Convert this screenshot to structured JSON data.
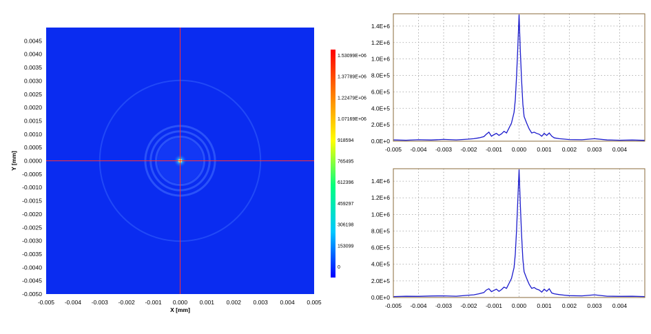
{
  "chart_data": [
    {
      "type": "heatmap",
      "title": "",
      "xlabel": "X [mm]",
      "ylabel": "Y [mm]",
      "xlim": [
        -0.005,
        0.005
      ],
      "ylim": [
        -0.005,
        0.005
      ],
      "x_ticks": [
        "-0.005",
        "-0.004",
        "-0.003",
        "-0.002",
        "-0.001",
        "0.000",
        "0.001",
        "0.002",
        "0.003",
        "0.004",
        "0.005"
      ],
      "y_ticks": [
        "0.0045",
        "0.0040",
        "0.0035",
        "0.0030",
        "0.0025",
        "0.0020",
        "0.0015",
        "0.0010",
        "0.0005",
        "0.0000",
        "-0.0005",
        "-0.0010",
        "-0.0015",
        "-0.0020",
        "-0.0025",
        "-0.0030",
        "-0.0035",
        "-0.0040",
        "-0.0045",
        "-0.0050"
      ],
      "y_tick_values": [
        0.0045,
        0.004,
        0.0035,
        0.003,
        0.0025,
        0.002,
        0.0015,
        0.001,
        0.0005,
        0.0,
        -0.0005,
        -0.001,
        -0.0015,
        -0.002,
        -0.0025,
        -0.003,
        -0.0035,
        -0.004,
        -0.0045,
        -0.005
      ],
      "crosshair": {
        "x": 0.0,
        "y": 0.0,
        "color": "#ff3030"
      },
      "peak": {
        "x": 0.0,
        "y": 0.0,
        "value": 1530990
      },
      "rings_mm": [
        0.0009,
        0.0011,
        0.0013,
        0.003
      ],
      "colorbar": {
        "min": 0,
        "max": 1530990,
        "labels": [
          "1.53099E+06",
          "1.37789E+06",
          "1.22479E+06",
          "1.07169E+06",
          "918594",
          "765495",
          "612396",
          "459297",
          "306198",
          "153099",
          "0"
        ],
        "label_values": [
          1530990,
          1377890,
          1224790,
          1071690,
          918594,
          765495,
          612396,
          459297,
          306198,
          153099,
          0
        ],
        "colors": [
          "#0000ff",
          "#00c8ff",
          "#00ff80",
          "#ffff00",
          "#ff8000",
          "#ff0000"
        ]
      },
      "background_color": "#0a2cf0"
    },
    {
      "type": "line",
      "xlim": [
        -0.005,
        0.005
      ],
      "ylim": [
        0,
        1550000
      ],
      "x_ticks": [
        "-0.005",
        "-0.004",
        "-0.003",
        "-0.002",
        "-0.001",
        "0.000",
        "0.001",
        "0.002",
        "0.003",
        "0.004"
      ],
      "y_ticks": [
        "0.0E+0",
        "2.0E+5",
        "4.0E+5",
        "6.0E+5",
        "8.0E+5",
        "1.0E+6",
        "1.2E+6",
        "1.4E+6"
      ],
      "y_tick_values": [
        0,
        200000,
        400000,
        600000,
        800000,
        1000000,
        1200000,
        1400000
      ],
      "grid": true,
      "color": "#1a1acc",
      "series": [
        {
          "x": [
            -0.005,
            -0.0045,
            -0.004,
            -0.0035,
            -0.003,
            -0.0025,
            -0.002,
            -0.0018,
            -0.0016,
            -0.0014,
            -0.0013,
            -0.0012,
            -0.0011,
            -0.001,
            -0.0009,
            -0.0008,
            -0.0007,
            -0.0006,
            -0.0005,
            -0.0004,
            -0.0003,
            -0.0002,
            -0.00015,
            -0.0001,
            -5e-05,
            0.0,
            5e-05,
            0.0001,
            0.00015,
            0.0002,
            0.0003,
            0.0004,
            0.0005,
            0.0006,
            0.0007,
            0.0008,
            0.0009,
            0.001,
            0.0011,
            0.0012,
            0.0013,
            0.0014,
            0.0016,
            0.0018,
            0.002,
            0.0025,
            0.003,
            0.0035,
            0.004,
            0.0045,
            0.005
          ],
          "y": [
            15000,
            12000,
            18000,
            14000,
            22000,
            16000,
            25000,
            30000,
            40000,
            55000,
            85000,
            110000,
            60000,
            80000,
            95000,
            70000,
            90000,
            120000,
            100000,
            160000,
            220000,
            350000,
            500000,
            800000,
            1150000,
            1540000,
            1100000,
            750000,
            450000,
            300000,
            220000,
            150000,
            100000,
            110000,
            95000,
            85000,
            60000,
            95000,
            70000,
            100000,
            60000,
            40000,
            30000,
            25000,
            20000,
            18000,
            30000,
            15000,
            12000,
            14000,
            10000
          ]
        }
      ]
    },
    {
      "type": "line",
      "xlim": [
        -0.005,
        0.005
      ],
      "ylim": [
        0,
        1550000
      ],
      "x_ticks": [
        "-0.005",
        "-0.004",
        "-0.003",
        "-0.002",
        "-0.001",
        "0.000",
        "0.001",
        "0.002",
        "0.003",
        "0.004"
      ],
      "y_ticks": [
        "0.0E+0",
        "2.0E+5",
        "4.0E+5",
        "6.0E+5",
        "8.0E+5",
        "1.0E+6",
        "1.2E+6",
        "1.4E+6"
      ],
      "y_tick_values": [
        0,
        200000,
        400000,
        600000,
        800000,
        1000000,
        1200000,
        1400000
      ],
      "grid": true,
      "color": "#1a1acc",
      "series": [
        {
          "x": [
            -0.005,
            -0.0045,
            -0.004,
            -0.0035,
            -0.003,
            -0.0025,
            -0.002,
            -0.0018,
            -0.0016,
            -0.0014,
            -0.0013,
            -0.0012,
            -0.0011,
            -0.001,
            -0.0009,
            -0.0008,
            -0.0007,
            -0.0006,
            -0.0005,
            -0.0004,
            -0.0003,
            -0.0002,
            -0.00015,
            -0.0001,
            -5e-05,
            0.0,
            5e-05,
            0.0001,
            0.00015,
            0.0002,
            0.0003,
            0.0004,
            0.0005,
            0.0006,
            0.0007,
            0.0008,
            0.0009,
            0.001,
            0.0011,
            0.0012,
            0.0013,
            0.0014,
            0.0016,
            0.0018,
            0.002,
            0.0025,
            0.003,
            0.0035,
            0.004,
            0.0045,
            0.005
          ],
          "y": [
            12000,
            15000,
            14000,
            18000,
            20000,
            16000,
            28000,
            32000,
            45000,
            60000,
            90000,
            105000,
            70000,
            85000,
            100000,
            75000,
            95000,
            125000,
            110000,
            170000,
            230000,
            360000,
            520000,
            820000,
            1180000,
            1540000,
            1120000,
            760000,
            460000,
            310000,
            230000,
            160000,
            110000,
            120000,
            100000,
            90000,
            65000,
            100000,
            75000,
            105000,
            55000,
            45000,
            35000,
            28000,
            22000,
            20000,
            32000,
            16000,
            14000,
            15000,
            12000
          ]
        }
      ]
    }
  ]
}
